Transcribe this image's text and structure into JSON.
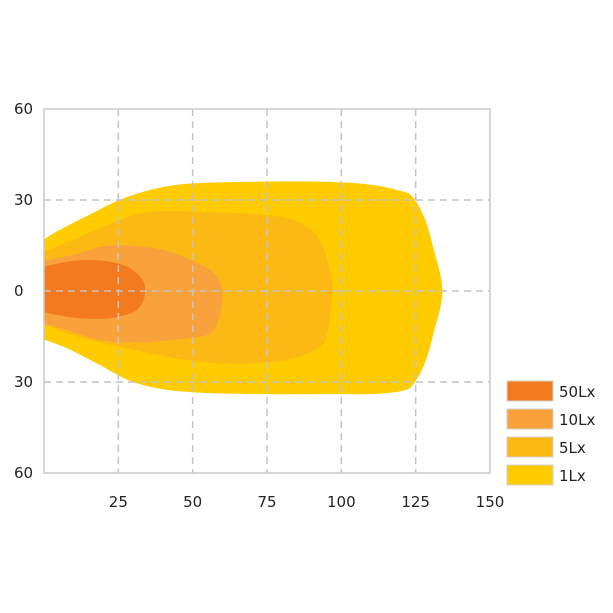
{
  "chart_data": {
    "type": "area",
    "title": "",
    "xlabel": "",
    "ylabel": "",
    "xlim": [
      0,
      150
    ],
    "ylim": [
      -60,
      60
    ],
    "x_ticks": [
      25,
      50,
      75,
      100,
      125,
      150
    ],
    "x_tick_labels": [
      "25",
      "50",
      "75",
      "100",
      "125",
      "150"
    ],
    "y_ticks": [
      60,
      30,
      0,
      -30,
      -60
    ],
    "y_tick_labels": [
      "60",
      "30",
      "0",
      "30",
      "60"
    ],
    "grid": true,
    "legend_position": "bottom-right",
    "series": [
      {
        "name": "1Lx",
        "color": "#FFCC00",
        "points": [
          [
            0,
            17
          ],
          [
            5,
            20
          ],
          [
            15,
            25
          ],
          [
            28,
            31
          ],
          [
            45,
            35
          ],
          [
            70,
            36
          ],
          [
            95,
            36
          ],
          [
            110,
            35
          ],
          [
            120,
            33
          ],
          [
            124,
            31
          ],
          [
            128,
            24
          ],
          [
            131,
            14
          ],
          [
            134,
            0
          ],
          [
            131,
            -14
          ],
          [
            128,
            -24
          ],
          [
            124,
            -31
          ],
          [
            120,
            -33
          ],
          [
            110,
            -34
          ],
          [
            95,
            -34
          ],
          [
            70,
            -34
          ],
          [
            45,
            -33
          ],
          [
            30,
            -30
          ],
          [
            18,
            -24
          ],
          [
            8,
            -19
          ],
          [
            0,
            -16
          ]
        ]
      },
      {
        "name": "5Lx",
        "color": "#FDB913",
        "points": [
          [
            0,
            13
          ],
          [
            10,
            17
          ],
          [
            22,
            22
          ],
          [
            35,
            26
          ],
          [
            55,
            26
          ],
          [
            75,
            25
          ],
          [
            85,
            23
          ],
          [
            92,
            18
          ],
          [
            96,
            8
          ],
          [
            97,
            0
          ],
          [
            95,
            -15
          ],
          [
            90,
            -20
          ],
          [
            80,
            -23
          ],
          [
            65,
            -24
          ],
          [
            50,
            -23
          ],
          [
            38,
            -21
          ],
          [
            28,
            -19
          ],
          [
            15,
            -16
          ],
          [
            5,
            -13
          ],
          [
            0,
            -10
          ]
        ]
      },
      {
        "name": "10Lx",
        "color": "#F9A23C",
        "points": [
          [
            0,
            10
          ],
          [
            10,
            12
          ],
          [
            22,
            15
          ],
          [
            38,
            14
          ],
          [
            50,
            10
          ],
          [
            57,
            6
          ],
          [
            60,
            0
          ],
          [
            59,
            -8
          ],
          [
            56,
            -14
          ],
          [
            45,
            -16
          ],
          [
            30,
            -17
          ],
          [
            18,
            -16
          ],
          [
            8,
            -13
          ],
          [
            0,
            -11
          ]
        ]
      },
      {
        "name": "50Lx",
        "color": "#F47A20",
        "points": [
          [
            0,
            8
          ],
          [
            10,
            10
          ],
          [
            20,
            10
          ],
          [
            28,
            8
          ],
          [
            33,
            4
          ],
          [
            34,
            0
          ],
          [
            33,
            -4
          ],
          [
            30,
            -7
          ],
          [
            22,
            -9
          ],
          [
            12,
            -9
          ],
          [
            5,
            -8
          ],
          [
            0,
            -7
          ]
        ]
      }
    ]
  }
}
